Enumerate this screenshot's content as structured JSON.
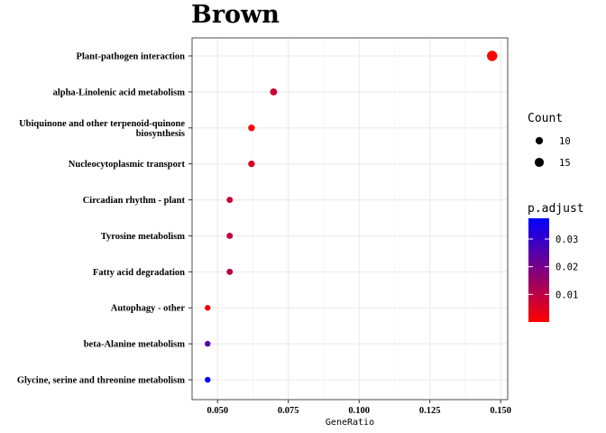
{
  "chart_data": {
    "type": "scatter",
    "title": "Brown",
    "xlabel": "GeneRatio",
    "ylabel": "",
    "xlim": [
      0.041,
      0.1525
    ],
    "x_ticks": [
      0.05,
      0.075,
      0.1,
      0.125,
      0.15
    ],
    "x_tick_labels": [
      "0.050",
      "0.075",
      "0.100",
      "0.125",
      "0.150"
    ],
    "grid": true,
    "categories": [
      "Plant-pathogen interaction",
      "alpha-Linolenic acid metabolism",
      "Ubiquinone and other terpenoid-quinone biosynthesis",
      "Nucleocytoplasmic transport",
      "Circadian rhythm - plant",
      "Tyrosine metabolism",
      "Fatty acid degradation",
      "Autophagy - other",
      "beta-Alanine metabolism",
      "Glycine, serine and threonine metabolism"
    ],
    "category_label_lines": [
      [
        "Plant-pathogen interaction"
      ],
      [
        "alpha-Linolenic acid metabolism"
      ],
      [
        "Ubiquinone and other terpenoid-quinone",
        "biosynthesis"
      ],
      [
        "Nucleocytoplasmic transport"
      ],
      [
        "Circadian rhythm - plant"
      ],
      [
        "Tyrosine metabolism"
      ],
      [
        "Fatty acid degradation"
      ],
      [
        "Autophagy - other"
      ],
      [
        "beta-Alanine metabolism"
      ],
      [
        "Glycine, serine and threonine metabolism"
      ]
    ],
    "gene_ratio": [
      0.147,
      0.0698,
      0.062,
      0.062,
      0.0543,
      0.0543,
      0.0543,
      0.0465,
      0.0465,
      0.0465
    ],
    "count": [
      19,
      9,
      8,
      8,
      7,
      7,
      7,
      6,
      6,
      6
    ],
    "p_adjust": [
      0.0,
      0.007,
      0.0,
      0.006,
      0.008,
      0.009,
      0.011,
      0.001,
      0.026,
      0.038
    ],
    "legend": {
      "size_title": "Count",
      "size_values": [
        10,
        15
      ],
      "color_title": "p.adjust",
      "color_ticks": [
        0.03,
        0.02,
        0.01
      ],
      "color_tick_labels": [
        "0.03",
        "0.02",
        "0.01"
      ],
      "color_range": [
        0.0,
        0.0375
      ],
      "color_low": "#FF0000",
      "color_high": "#0000FF",
      "placement": "right"
    }
  }
}
